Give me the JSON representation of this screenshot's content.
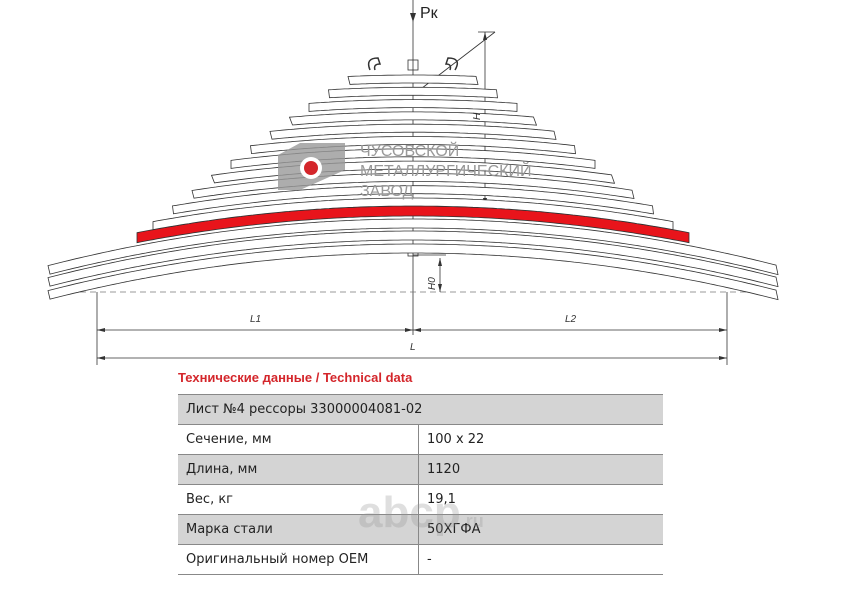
{
  "drawing": {
    "load_label": "Pк",
    "h_label": "H",
    "h0_label": "H0",
    "l1_label": "L1",
    "l2_label": "L2",
    "l_label": "L"
  },
  "logo": {
    "lines": [
      "ЧУСОВСКОЙ",
      "МЕТАЛЛУРГИЧЕСКИЙ",
      "ЗАВОД"
    ]
  },
  "table": {
    "title": "Технические данные / Technical data",
    "caption": "Лист №4 рессоры 33000004081-02",
    "rows": [
      [
        "Сечение, мм",
        "100 x 22"
      ],
      [
        "Длина, мм",
        "1120"
      ],
      [
        "Вес, кг",
        "19,1"
      ],
      [
        "Марка стали",
        "50ХГФА"
      ],
      [
        "Оригинальный номер OEM",
        "-"
      ]
    ]
  },
  "watermark": {
    "text": "abcp",
    "suffix": ".ru"
  }
}
